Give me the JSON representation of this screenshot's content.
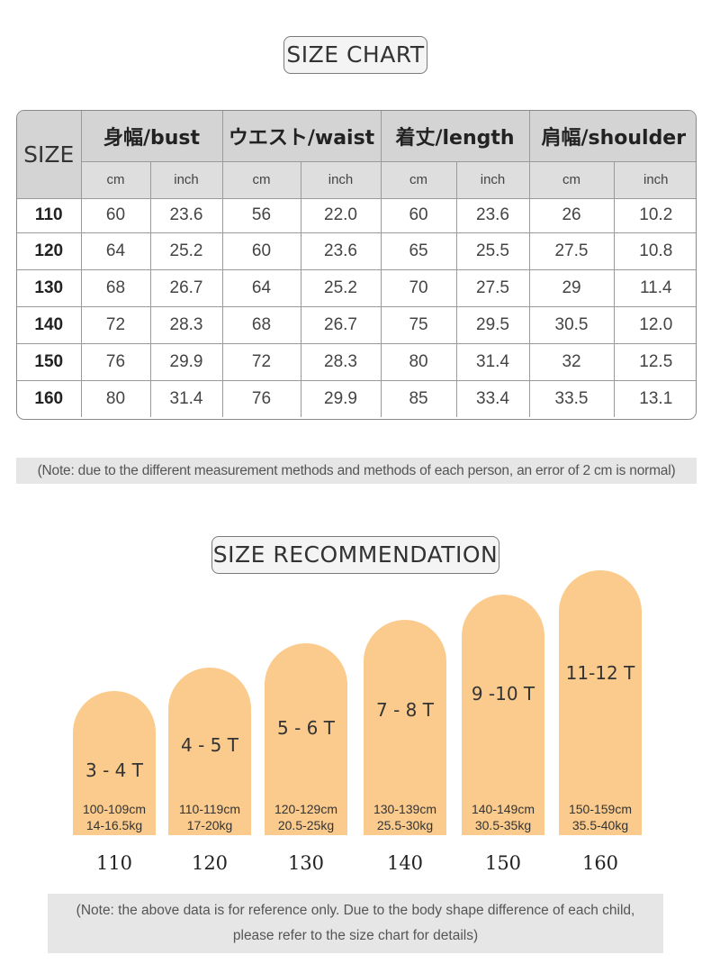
{
  "chart_title": "SIZE CHART",
  "table": {
    "size_header": "SIZE",
    "groups": [
      "身幅/bust",
      "ウエスト/waist",
      "着丈/length",
      "肩幅/shoulder"
    ],
    "units": [
      "cm",
      "inch",
      "cm",
      "inch",
      "cm",
      "inch",
      "cm",
      "inch"
    ],
    "rows": [
      {
        "size": "110",
        "cells": [
          "60",
          "23.6",
          "56",
          "22.0",
          "60",
          "23.6",
          "26",
          "10.2"
        ]
      },
      {
        "size": "120",
        "cells": [
          "64",
          "25.2",
          "60",
          "23.6",
          "65",
          "25.5",
          "27.5",
          "10.8"
        ]
      },
      {
        "size": "130",
        "cells": [
          "68",
          "26.7",
          "64",
          "25.2",
          "70",
          "27.5",
          "29",
          "11.4"
        ]
      },
      {
        "size": "140",
        "cells": [
          "72",
          "28.3",
          "68",
          "26.7",
          "75",
          "29.5",
          "30.5",
          "12.0"
        ]
      },
      {
        "size": "150",
        "cells": [
          "76",
          "29.9",
          "72",
          "28.3",
          "80",
          "31.4",
          "32",
          "12.5"
        ]
      },
      {
        "size": "160",
        "cells": [
          "80",
          "31.4",
          "76",
          "29.9",
          "85",
          "33.4",
          "33.5",
          "13.1"
        ]
      }
    ]
  },
  "note1": "(Note: due to the different measurement methods and methods of each person, an error of 2 cm is normal)",
  "recommend_title": "SIZE RECOMMENDATION",
  "recommend": [
    {
      "age": "3 - 4 T",
      "height": "100-109cm",
      "weight": "14-16.5kg",
      "size": "110"
    },
    {
      "age": "4 - 5 T",
      "height": "110-119cm",
      "weight": "17-20kg",
      "size": "120"
    },
    {
      "age": "5 - 6 T",
      "height": "120-129cm",
      "weight": "20.5-25kg",
      "size": "130"
    },
    {
      "age": "7 - 8 T",
      "height": "130-139cm",
      "weight": "25.5-30kg",
      "size": "140"
    },
    {
      "age": "9 -10 T",
      "height": "140-149cm",
      "weight": "30.5-35kg",
      "size": "150"
    },
    {
      "age": "11-12 T",
      "height": "150-159cm",
      "weight": "35.5-40kg",
      "size": "160"
    }
  ],
  "note2_line1": "(Note: the above data is for reference only. Due to the body shape difference of each child,",
  "note2_line2": "please refer to the size chart for details)",
  "colors": {
    "pill": "#fbcb8d",
    "header_bg": "#d4d4d4",
    "note_bg": "#e6e6e6"
  }
}
